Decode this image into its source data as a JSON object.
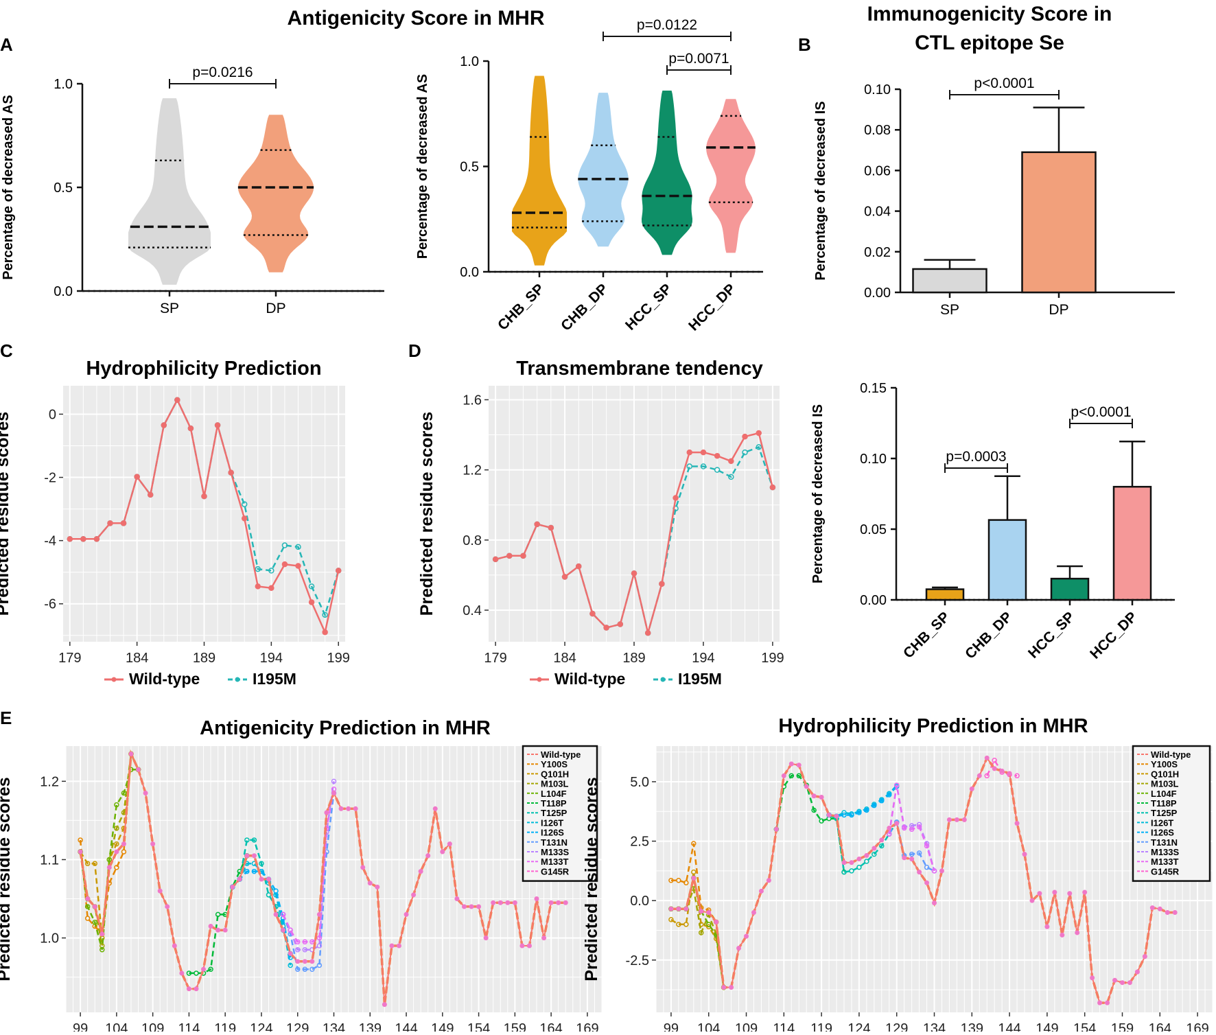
{
  "colors": {
    "gray": "#d9d9d9",
    "salmon": "#f2a07b",
    "gold": "#e8a319",
    "lightblue": "#a9d3f0",
    "green": "#0e8f67",
    "pink": "#f59898",
    "wild": "#ee6e6e",
    "mutant": "#25b6b6",
    "ggbg": "#ebebeb"
  },
  "panel_labels": {
    "A": "A",
    "B": "B",
    "C": "C",
    "D": "D",
    "E": "E"
  },
  "chart_data": [
    {
      "id": "A1",
      "type": "violin",
      "title": "Antigenicity Score in MHR",
      "ylabel": "Percentage of decreased AS",
      "ylim": [
        0,
        1.0
      ],
      "yticks": [
        "0.0",
        "0.5",
        "1.0"
      ],
      "yticks_v": [
        0,
        0.5,
        1.0
      ],
      "categories": [
        "SP",
        "DP"
      ],
      "groups": [
        {
          "name": "SP",
          "color": "gray",
          "min": 0.03,
          "max": 0.93,
          "median": 0.31,
          "q1": 0.21,
          "q3": 0.63
        },
        {
          "name": "DP",
          "color": "salmon",
          "min": 0.09,
          "max": 0.85,
          "median": 0.5,
          "q1": 0.27,
          "q3": 0.68
        }
      ],
      "comparisons": [
        {
          "from": 0,
          "to": 1,
          "label": "p=0.0216"
        }
      ]
    },
    {
      "id": "A2",
      "type": "violin",
      "ylabel": "Percentage of decreased AS",
      "ylim": [
        0,
        1.0
      ],
      "yticks": [
        "0.0",
        "0.5",
        "1.0"
      ],
      "yticks_v": [
        0,
        0.5,
        1.0
      ],
      "categories": [
        "CHB_SP",
        "CHB_DP",
        "HCC_SP",
        "HCC_DP"
      ],
      "groups": [
        {
          "name": "CHB_SP",
          "color": "gold",
          "min": 0.03,
          "max": 0.93,
          "median": 0.28,
          "q1": 0.21,
          "q3": 0.64
        },
        {
          "name": "CHB_DP",
          "color": "lightblue",
          "min": 0.12,
          "max": 0.85,
          "median": 0.44,
          "q1": 0.24,
          "q3": 0.6
        },
        {
          "name": "HCC_SP",
          "color": "green",
          "min": 0.08,
          "max": 0.86,
          "median": 0.36,
          "q1": 0.22,
          "q3": 0.64
        },
        {
          "name": "HCC_DP",
          "color": "pink",
          "min": 0.09,
          "max": 0.82,
          "median": 0.59,
          "q1": 0.33,
          "q3": 0.74
        }
      ],
      "comparisons": [
        {
          "from": 1,
          "to": 3,
          "label": "p=0.0122"
        },
        {
          "from": 2,
          "to": 3,
          "label": "p=0.0071"
        }
      ]
    },
    {
      "id": "B1",
      "type": "bar",
      "title": "Immunogenicity Score in CTL epitope Se",
      "title_lines": [
        "Immunogenicity Score in",
        "CTL epitope Se"
      ],
      "ylabel": "Percentage of decreased IS",
      "ylim": [
        0,
        0.1
      ],
      "yticks": [
        "0.00",
        "0.02",
        "0.04",
        "0.06",
        "0.08",
        "0.10"
      ],
      "yticks_v": [
        0,
        0.02,
        0.04,
        0.06,
        0.08,
        0.1
      ],
      "categories": [
        "SP",
        "DP"
      ],
      "values": [
        0.0115,
        0.069
      ],
      "errors": [
        0.0045,
        0.022
      ],
      "colors": [
        "gray",
        "salmon"
      ],
      "comparisons": [
        {
          "from": 0,
          "to": 1,
          "label": "p<0.0001"
        }
      ]
    },
    {
      "id": "B2",
      "type": "bar",
      "ylabel": "Percentage of decreased IS",
      "ylim": [
        0,
        0.15
      ],
      "yticks": [
        "0.00",
        "0.05",
        "0.10",
        "0.15"
      ],
      "yticks_v": [
        0,
        0.05,
        0.1,
        0.15
      ],
      "categories": [
        "CHB_SP",
        "CHB_DP",
        "HCC_SP",
        "HCC_DP"
      ],
      "values": [
        0.0075,
        0.0565,
        0.015,
        0.08
      ],
      "errors": [
        0.0013,
        0.031,
        0.0088,
        0.032
      ],
      "colors": [
        "gold",
        "lightblue",
        "green",
        "pink"
      ],
      "comparisons": [
        {
          "from": 0,
          "to": 1,
          "label": "p=0.0003"
        },
        {
          "from": 2,
          "to": 3,
          "label": "p<0.0001"
        }
      ]
    },
    {
      "id": "C",
      "type": "line",
      "title": "Hydrophilicity Prediction",
      "ylabel": "Predicted residue scores",
      "xlim": [
        178.5,
        199.5
      ],
      "ylim": [
        -7.2,
        0.9
      ],
      "xticks": [
        179,
        184,
        189,
        194,
        199
      ],
      "yticks": [
        0,
        -2,
        -4,
        -6
      ],
      "x": [
        179,
        180,
        181,
        182,
        183,
        184,
        185,
        186,
        187,
        188,
        189,
        190,
        191,
        192,
        193,
        194,
        195,
        196,
        197,
        198,
        199
      ],
      "series": [
        {
          "name": "Wild-type",
          "color": "wild",
          "dashed": false,
          "values": [
            -3.95,
            -3.95,
            -3.95,
            -3.45,
            -3.45,
            -1.98,
            -2.55,
            -0.35,
            0.45,
            -0.45,
            -2.6,
            -0.35,
            -1.85,
            -3.3,
            -5.45,
            -5.5,
            -4.75,
            -4.8,
            -5.95,
            -6.9,
            -4.95
          ]
        },
        {
          "name": "I195M",
          "color": "mutant",
          "dashed": true,
          "values": [
            -3.95,
            -3.95,
            -3.95,
            -3.45,
            -3.45,
            -1.98,
            -2.55,
            -0.35,
            0.45,
            -0.45,
            -2.6,
            -0.35,
            -1.85,
            -2.85,
            -4.9,
            -4.95,
            -4.15,
            -4.2,
            -5.45,
            -6.35,
            -4.95
          ]
        }
      ],
      "legend": [
        "Wild-type",
        "I195M"
      ]
    },
    {
      "id": "D",
      "type": "line",
      "title": "Transmembrane tendency",
      "ylabel": "Predicted residue scores",
      "xlim": [
        178.5,
        199.5
      ],
      "ylim": [
        0.22,
        1.68
      ],
      "xticks": [
        179,
        184,
        189,
        194,
        199
      ],
      "yticks": [
        "0.4",
        "0.8",
        "1.2",
        "1.6"
      ],
      "yticks_v": [
        0.4,
        0.8,
        1.2,
        1.6
      ],
      "x": [
        179,
        180,
        181,
        182,
        183,
        184,
        185,
        186,
        187,
        188,
        189,
        190,
        191,
        192,
        193,
        194,
        195,
        196,
        197,
        198,
        199
      ],
      "series": [
        {
          "name": "Wild-type",
          "color": "wild",
          "dashed": false,
          "values": [
            0.69,
            0.71,
            0.71,
            0.89,
            0.87,
            0.59,
            0.65,
            0.38,
            0.3,
            0.32,
            0.61,
            0.27,
            0.55,
            1.04,
            1.3,
            1.3,
            1.28,
            1.25,
            1.39,
            1.41,
            1.1
          ]
        },
        {
          "name": "I195M",
          "color": "mutant",
          "dashed": true,
          "values": [
            0.69,
            0.71,
            0.71,
            0.89,
            0.87,
            0.59,
            0.65,
            0.38,
            0.3,
            0.32,
            0.61,
            0.27,
            0.55,
            0.98,
            1.22,
            1.22,
            1.2,
            1.16,
            1.3,
            1.33,
            1.1
          ]
        }
      ],
      "legend": [
        "Wild-type",
        "I195M"
      ]
    },
    {
      "id": "E1",
      "type": "line",
      "title": "Antigenicity Prediction in MHR",
      "ylabel": "Predicted residue scores",
      "xlim": [
        97,
        171
      ],
      "ylim": [
        0.905,
        1.245
      ],
      "xticks": [
        99,
        104,
        109,
        114,
        119,
        124,
        129,
        134,
        139,
        144,
        149,
        154,
        159,
        164,
        169
      ],
      "yticks": [
        "1.0",
        "1.1",
        "1.2"
      ],
      "yticks_v": [
        1.0,
        1.1,
        1.2
      ],
      "x_start": 99,
      "wild": [
        1.11,
        1.05,
        1.04,
        1.005,
        1.09,
        1.11,
        1.12,
        1.235,
        1.215,
        1.185,
        1.12,
        1.06,
        1.04,
        0.99,
        0.955,
        0.935,
        0.935,
        0.96,
        1.015,
        1.01,
        1.01,
        1.065,
        1.075,
        1.105,
        1.105,
        1.075,
        1.075,
        1.03,
        1.01,
        0.98,
        0.97,
        0.97,
        0.97,
        1.03,
        1.16,
        1.185,
        1.165,
        1.165,
        1.165,
        1.09,
        1.07,
        1.065,
        0.915,
        0.99,
        0.99,
        1.03,
        1.055,
        1.085,
        1.105,
        1.165,
        1.11,
        1.12,
        1.05,
        1.04,
        1.04,
        1.04,
        1.0,
        1.045,
        1.045,
        1.045,
        1.045,
        0.99,
        0.99,
        1.05,
        1.0,
        1.045,
        1.045,
        1.045
      ],
      "legend": [
        "Wild-type",
        "Y100S",
        "Q101H",
        "M103L",
        "L104F",
        "T118P",
        "T125P",
        "I126T",
        "I126S",
        "T131N",
        "M133S",
        "M133T",
        "G145R"
      ],
      "legend_colors": [
        "#f8766d",
        "#e58700",
        "#c99800",
        "#a3a500",
        "#6bb100",
        "#00ba38",
        "#00c0af",
        "#00bcd8",
        "#00b0f6",
        "#619cff",
        "#b983ff",
        "#e76bf3",
        "#fd61d1"
      ],
      "mutant_segments": [
        {
          "name": "Y100S",
          "color": "#e58700",
          "from": 99,
          "values": [
            1.125,
            1.025,
            1.015,
            1.005,
            1.07,
            1.09,
            1.11,
            1.235,
            1.215
          ]
        },
        {
          "name": "Q101H",
          "color": "#c99800",
          "from": 99,
          "values": [
            1.11,
            1.095,
            1.095,
            1.0,
            1.1,
            1.12,
            1.14,
            1.235,
            1.215
          ]
        },
        {
          "name": "M103L",
          "color": "#a3a500",
          "from": 99,
          "values": [
            1.11,
            1.05,
            1.04,
            0.99,
            1.1,
            1.14,
            1.16,
            1.235,
            1.215
          ]
        },
        {
          "name": "L104F",
          "color": "#6bb100",
          "from": 99,
          "values": [
            1.11,
            1.04,
            1.02,
            0.985,
            1.1,
            1.17,
            1.185,
            1.215,
            1.215
          ]
        },
        {
          "name": "T118P",
          "color": "#00ba38",
          "from": 114,
          "values": [
            0.955,
            0.955,
            0.955,
            0.96,
            1.03,
            1.03,
            1.065,
            1.085,
            1.105
          ]
        },
        {
          "name": "T125P",
          "color": "#00c0af",
          "from": 120,
          "values": [
            1.065,
            1.075,
            1.125,
            1.125,
            1.095,
            1.055,
            1.04,
            1.01,
            0.98
          ]
        },
        {
          "name": "I126T",
          "color": "#00bcd8",
          "from": 120,
          "values": [
            1.065,
            1.075,
            1.095,
            1.095,
            1.085,
            1.07,
            1.055,
            1.015,
            0.965
          ]
        },
        {
          "name": "I126S",
          "color": "#00b0f6",
          "from": 120,
          "values": [
            1.065,
            1.075,
            1.085,
            1.085,
            1.085,
            1.075,
            1.06,
            1.025,
            0.975
          ]
        },
        {
          "name": "T131N",
          "color": "#619cff",
          "from": 127,
          "values": [
            1.03,
            1.005,
            0.96,
            0.96,
            0.96,
            0.965,
            1.11,
            1.185
          ]
        },
        {
          "name": "M133S",
          "color": "#b983ff",
          "from": 127,
          "values": [
            1.03,
            1.01,
            0.985,
            0.985,
            0.985,
            0.99,
            1.135,
            1.2
          ]
        },
        {
          "name": "M133T",
          "color": "#e76bf3",
          "from": 127,
          "values": [
            1.03,
            1.01,
            0.995,
            0.995,
            0.995,
            1.0,
            1.14,
            1.19
          ]
        }
      ]
    },
    {
      "id": "E2",
      "type": "line",
      "title": "Hydrophilicity Prediction in MHR",
      "ylabel": "Predicted residue scores",
      "xlim": [
        97,
        171
      ],
      "ylim": [
        -4.7,
        6.5
      ],
      "xticks": [
        99,
        104,
        109,
        114,
        119,
        124,
        129,
        134,
        139,
        144,
        149,
        154,
        159,
        164,
        169
      ],
      "yticks": [
        "5.0",
        "2.5",
        "0.0",
        "-2.5"
      ],
      "yticks_v": [
        5.0,
        2.5,
        0.0,
        -2.5
      ],
      "x_start": 99,
      "wild": [
        -0.35,
        -0.35,
        -0.35,
        0.95,
        -0.45,
        -0.5,
        -0.9,
        -3.65,
        -3.65,
        -2.0,
        -1.5,
        -0.5,
        0.4,
        0.85,
        3.0,
        5.25,
        5.75,
        5.7,
        4.8,
        4.4,
        4.35,
        3.6,
        3.55,
        1.6,
        1.6,
        1.75,
        1.9,
        2.2,
        2.55,
        3.05,
        3.25,
        1.8,
        1.75,
        1.2,
        0.75,
        -0.1,
        1.25,
        3.4,
        3.4,
        3.4,
        4.7,
        5.25,
        6.0,
        5.55,
        5.45,
        5.35,
        3.25,
        1.95,
        0.0,
        0.3,
        -1.1,
        0.35,
        -1.45,
        0.3,
        -1.35,
        0.35,
        -3.25,
        -4.3,
        -4.3,
        -3.35,
        -3.45,
        -3.45,
        -3.0,
        -2.35,
        -0.3,
        -0.35,
        -0.5,
        -0.5
      ],
      "legend": [
        "Wild-type",
        "Y100S",
        "Q101H",
        "M103L",
        "L104F",
        "T118P",
        "T125P",
        "I126T",
        "I126S",
        "T131N",
        "M133S",
        "M133T",
        "G145R"
      ],
      "legend_colors": [
        "#f8766d",
        "#e58700",
        "#c99800",
        "#a3a500",
        "#6bb100",
        "#00ba38",
        "#00c0af",
        "#00bcd8",
        "#00b0f6",
        "#619cff",
        "#b983ff",
        "#e76bf3",
        "#fd61d1"
      ],
      "mutant_segments": [
        {
          "name": "Y100S",
          "color": "#e58700",
          "from": 99,
          "values": [
            0.85,
            0.85,
            0.75,
            2.4,
            -0.3,
            -0.4,
            -0.9,
            -3.65
          ]
        },
        {
          "name": "Q101H",
          "color": "#c99800",
          "from": 99,
          "values": [
            -0.8,
            -1.0,
            -1.0,
            1.2,
            -1.0,
            -1.1,
            -1.6,
            -3.65
          ]
        },
        {
          "name": "M103L",
          "color": "#a3a500",
          "from": 99,
          "values": [
            -0.35,
            -0.35,
            -0.35,
            0.5,
            -1.35,
            -0.6,
            -1.4,
            -3.65
          ]
        },
        {
          "name": "L104F",
          "color": "#6bb100",
          "from": 99,
          "values": [
            -0.35,
            -0.35,
            -0.35,
            0.95,
            -0.45,
            -1.0,
            -1.45,
            -3.65
          ]
        },
        {
          "name": "T118P",
          "color": "#00ba38",
          "from": 113,
          "values": [
            3.0,
            4.8,
            5.25,
            5.25,
            4.85,
            3.8,
            3.35,
            3.45,
            3.45,
            1.2
          ]
        },
        {
          "name": "T125P",
          "color": "#00c0af",
          "from": 120,
          "values": [
            3.6,
            3.45,
            1.2,
            1.25,
            1.4,
            1.65,
            1.95,
            2.3,
            2.8,
            3.3
          ]
        },
        {
          "name": "I126T",
          "color": "#00bcd8",
          "from": 120,
          "values": [
            3.6,
            3.55,
            3.7,
            3.65,
            3.75,
            3.85,
            4.05,
            4.25,
            4.5,
            4.85
          ]
        },
        {
          "name": "I126S",
          "color": "#00b0f6",
          "from": 120,
          "values": [
            3.6,
            3.55,
            3.6,
            3.6,
            3.7,
            3.8,
            4.0,
            4.2,
            4.45,
            4.8
          ]
        },
        {
          "name": "T131N",
          "color": "#619cff",
          "from": 128,
          "values": [
            2.8,
            3.3,
            1.9,
            1.95,
            2.0,
            1.4,
            1.25
          ]
        },
        {
          "name": "M133S",
          "color": "#b983ff",
          "from": 128,
          "values": [
            2.8,
            4.85,
            3.1,
            3.15,
            3.2,
            2.4,
            1.25
          ]
        },
        {
          "name": "M133T",
          "color": "#e76bf3",
          "from": 128,
          "values": [
            2.8,
            4.85,
            3.05,
            3.0,
            3.1,
            2.3,
            1.25
          ]
        },
        {
          "name": "G145R",
          "color": "#fd61d1",
          "from": 141,
          "values": [
            5.25,
            5.9,
            5.4,
            5.3,
            5.25
          ]
        }
      ]
    }
  ]
}
